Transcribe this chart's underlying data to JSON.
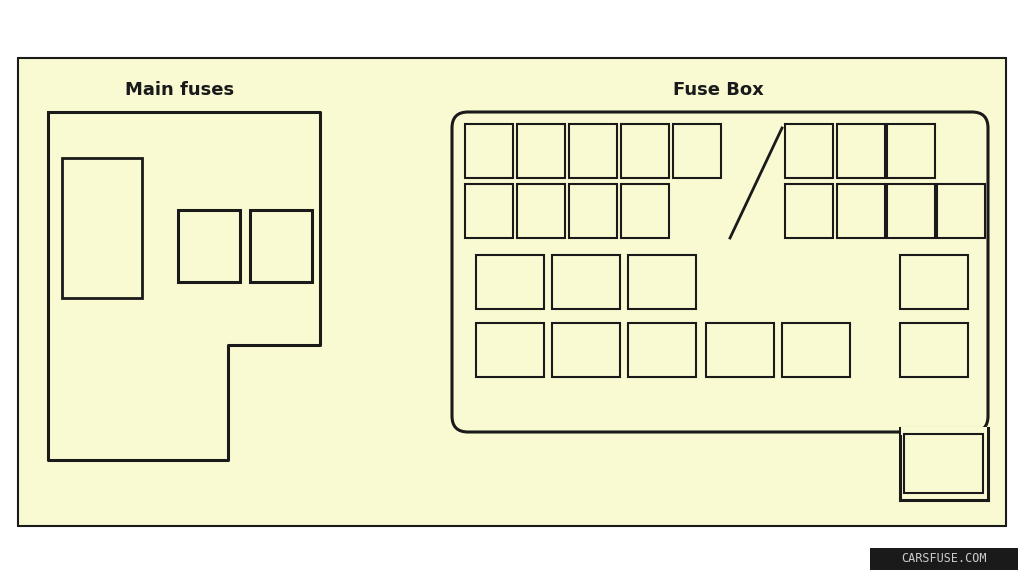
{
  "bg_color": "#FAFAD2",
  "outer_bg": "#FFFFFF",
  "border_color": "#1a1a1a",
  "text_color": "#1a1a1a",
  "title_main_fuses": "Main fuses",
  "title_fuse_box": "Fuse Box",
  "watermark": "CARSFUSE.COM",
  "fig_width": 10.24,
  "fig_height": 5.76
}
